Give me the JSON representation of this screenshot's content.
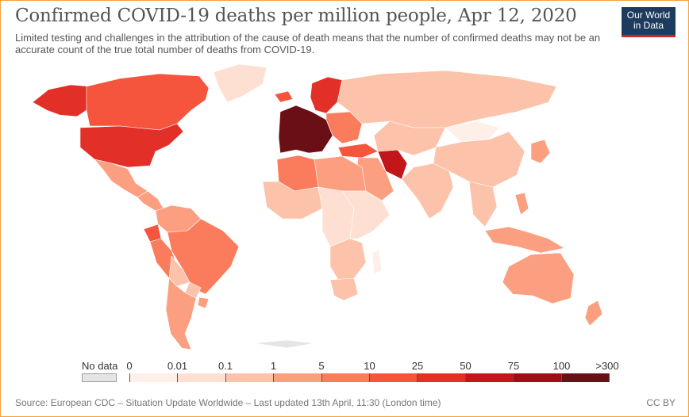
{
  "header": {
    "title": "Confirmed COVID-19 deaths per million people, Apr 12, 2020",
    "subtitle": "Limited testing and challenges in the attribution of the cause of death means that the number of confirmed deaths may not be an accurate count of the true total number of deaths from COVID-19."
  },
  "logo": {
    "line1": "Our World",
    "line2": "in Data"
  },
  "legend": {
    "nodata_label": "No data",
    "nodata_color": "#e5e5e5",
    "ticks": [
      "0",
      "0.01",
      "0.1",
      "1",
      "5",
      "10",
      "25",
      "50",
      "75",
      "100",
      ">300"
    ],
    "colors": [
      "#fef0e9",
      "#fde0d2",
      "#fcc2aa",
      "#fc9f81",
      "#fb7c5c",
      "#f5553d",
      "#e23028",
      "#c2161b",
      "#9f0e15",
      "#6b0f16"
    ]
  },
  "footer": {
    "source": "Source: European CDC – Situation Update Worldwide – Last updated 13th April, 11:30 (London time)",
    "license": "CC BY"
  },
  "map_regions": [
    {
      "name": "USA",
      "level": 6
    },
    {
      "name": "Canada",
      "level": 5
    },
    {
      "name": "Alaska",
      "level": 6
    },
    {
      "name": "Greenland",
      "level": 1
    },
    {
      "name": "Mexico",
      "level": 3
    },
    {
      "name": "Central America",
      "level": 3
    },
    {
      "name": "Colombia / Venezuela",
      "level": 3
    },
    {
      "name": "Ecuador",
      "level": 5
    },
    {
      "name": "Peru",
      "level": 4
    },
    {
      "name": "Brazil",
      "level": 4
    },
    {
      "name": "Bolivia",
      "level": 2
    },
    {
      "name": "Paraguay",
      "level": 2
    },
    {
      "name": "Chile / Argentina",
      "level": 3
    },
    {
      "name": "Uruguay",
      "level": 3
    },
    {
      "name": "Iceland",
      "level": 5
    },
    {
      "name": "Scandinavia",
      "level": 6
    },
    {
      "name": "Western Europe",
      "level": 9
    },
    {
      "name": "Eastern Europe",
      "level": 4
    },
    {
      "name": "Russia",
      "level": 2
    },
    {
      "name": "Turkey",
      "level": 5
    },
    {
      "name": "Iran",
      "level": 7
    },
    {
      "name": "Middle East",
      "level": 3
    },
    {
      "name": "Kazakhstan / Central Asia",
      "level": 2
    },
    {
      "name": "Mongolia",
      "level": 0
    },
    {
      "name": "China",
      "level": 2
    },
    {
      "name": "South Asia",
      "level": 2
    },
    {
      "name": "Southeast Asia",
      "level": 2
    },
    {
      "name": "Indonesia",
      "level": 3
    },
    {
      "name": "Philippines",
      "level": 3
    },
    {
      "name": "Japan / Korea",
      "level": 3
    },
    {
      "name": "North Africa",
      "level": 3
    },
    {
      "name": "Algeria",
      "level": 4
    },
    {
      "name": "West Africa",
      "level": 2
    },
    {
      "name": "Central Africa",
      "level": 1
    },
    {
      "name": "East Africa",
      "level": 1
    },
    {
      "name": "Southern Africa",
      "level": 2
    },
    {
      "name": "South Africa",
      "level": 2
    },
    {
      "name": "Madagascar",
      "level": 0
    },
    {
      "name": "Australia",
      "level": 3
    },
    {
      "name": "New Zealand",
      "level": 3
    },
    {
      "name": "Antarctic",
      "level": -1
    }
  ]
}
